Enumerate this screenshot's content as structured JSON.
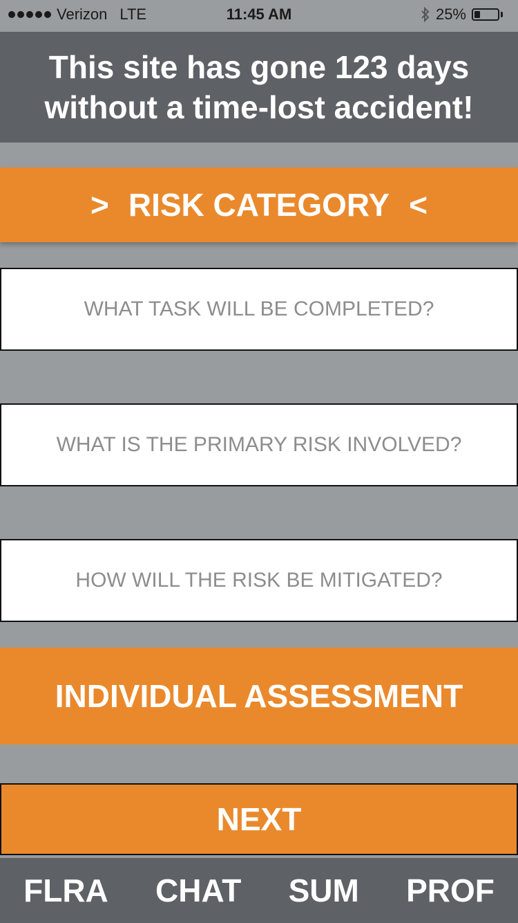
{
  "status_bar": {
    "carrier": "Verizon",
    "network": "LTE",
    "time": "11:45 AM",
    "battery_percent": "25%",
    "battery_level": 0.25
  },
  "banner": {
    "line1": "This site has gone 123 days",
    "line2": "without a time-lost accident!"
  },
  "risk_category": {
    "label": "RISK CATEGORY",
    "left_arrow": ">",
    "right_arrow": "<"
  },
  "form": {
    "task_placeholder": "WHAT TASK WILL BE COMPLETED?",
    "risk_placeholder": "WHAT IS THE PRIMARY RISK INVOLVED?",
    "mitigation_placeholder": "HOW WILL THE RISK BE MITIGATED?"
  },
  "assessment_label": "INDIVIDUAL ASSESSMENT",
  "next_label": "NEXT",
  "tabs": [
    {
      "label": "FLRA"
    },
    {
      "label": "CHAT"
    },
    {
      "label": "SUM"
    },
    {
      "label": "PROF"
    }
  ],
  "colors": {
    "accent": "#ea892c",
    "dark": "#5e6166",
    "background": "#999c9f"
  }
}
